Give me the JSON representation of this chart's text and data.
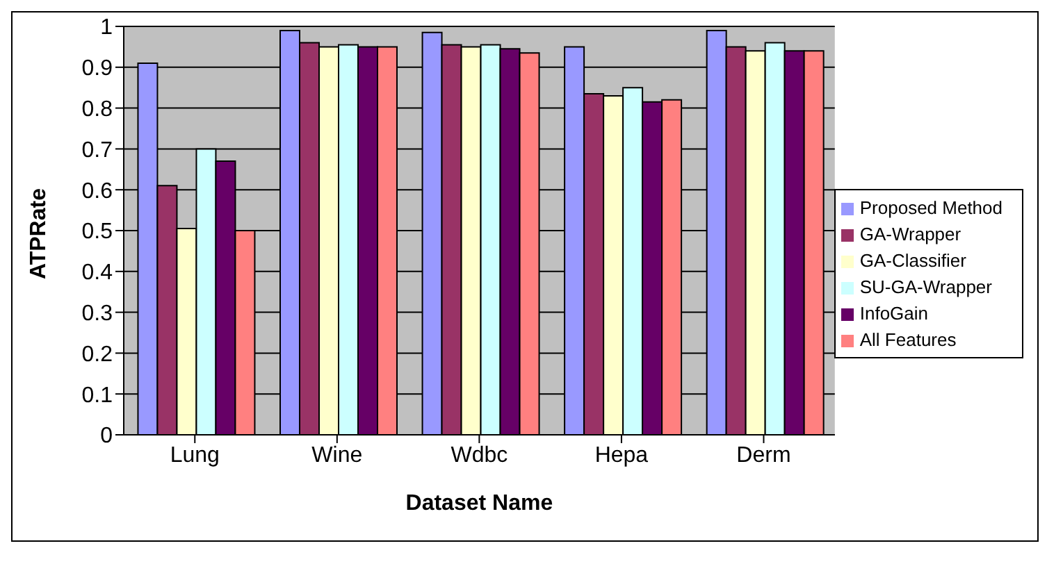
{
  "chart_data": {
    "type": "bar",
    "xlabel": "Dataset Name",
    "ylabel": "ATPRate",
    "categories": [
      "Lung",
      "Wine",
      "Wdbc",
      "Hepa",
      "Derm"
    ],
    "series": [
      {
        "name": "Proposed Method",
        "color": "#9999ff",
        "values": [
          0.91,
          0.99,
          0.985,
          0.95,
          0.99
        ]
      },
      {
        "name": "GA-Wrapper",
        "color": "#993366",
        "values": [
          0.61,
          0.96,
          0.955,
          0.835,
          0.95
        ]
      },
      {
        "name": "GA-Classifier",
        "color": "#ffffcc",
        "values": [
          0.505,
          0.95,
          0.95,
          0.83,
          0.94
        ]
      },
      {
        "name": "SU-GA-Wrapper",
        "color": "#ccffff",
        "values": [
          0.7,
          0.955,
          0.955,
          0.85,
          0.96
        ]
      },
      {
        "name": "InfoGain",
        "color": "#660066",
        "values": [
          0.67,
          0.95,
          0.945,
          0.815,
          0.94
        ]
      },
      {
        "name": "All Features",
        "color": "#ff8080",
        "values": [
          0.5,
          0.95,
          0.935,
          0.82,
          0.94
        ]
      }
    ],
    "ylim": [
      0,
      1
    ],
    "yticks": [
      0,
      0.1,
      0.2,
      0.3,
      0.4,
      0.5,
      0.6,
      0.7,
      0.8,
      0.9,
      1
    ],
    "grid": "y",
    "legend": "right"
  }
}
